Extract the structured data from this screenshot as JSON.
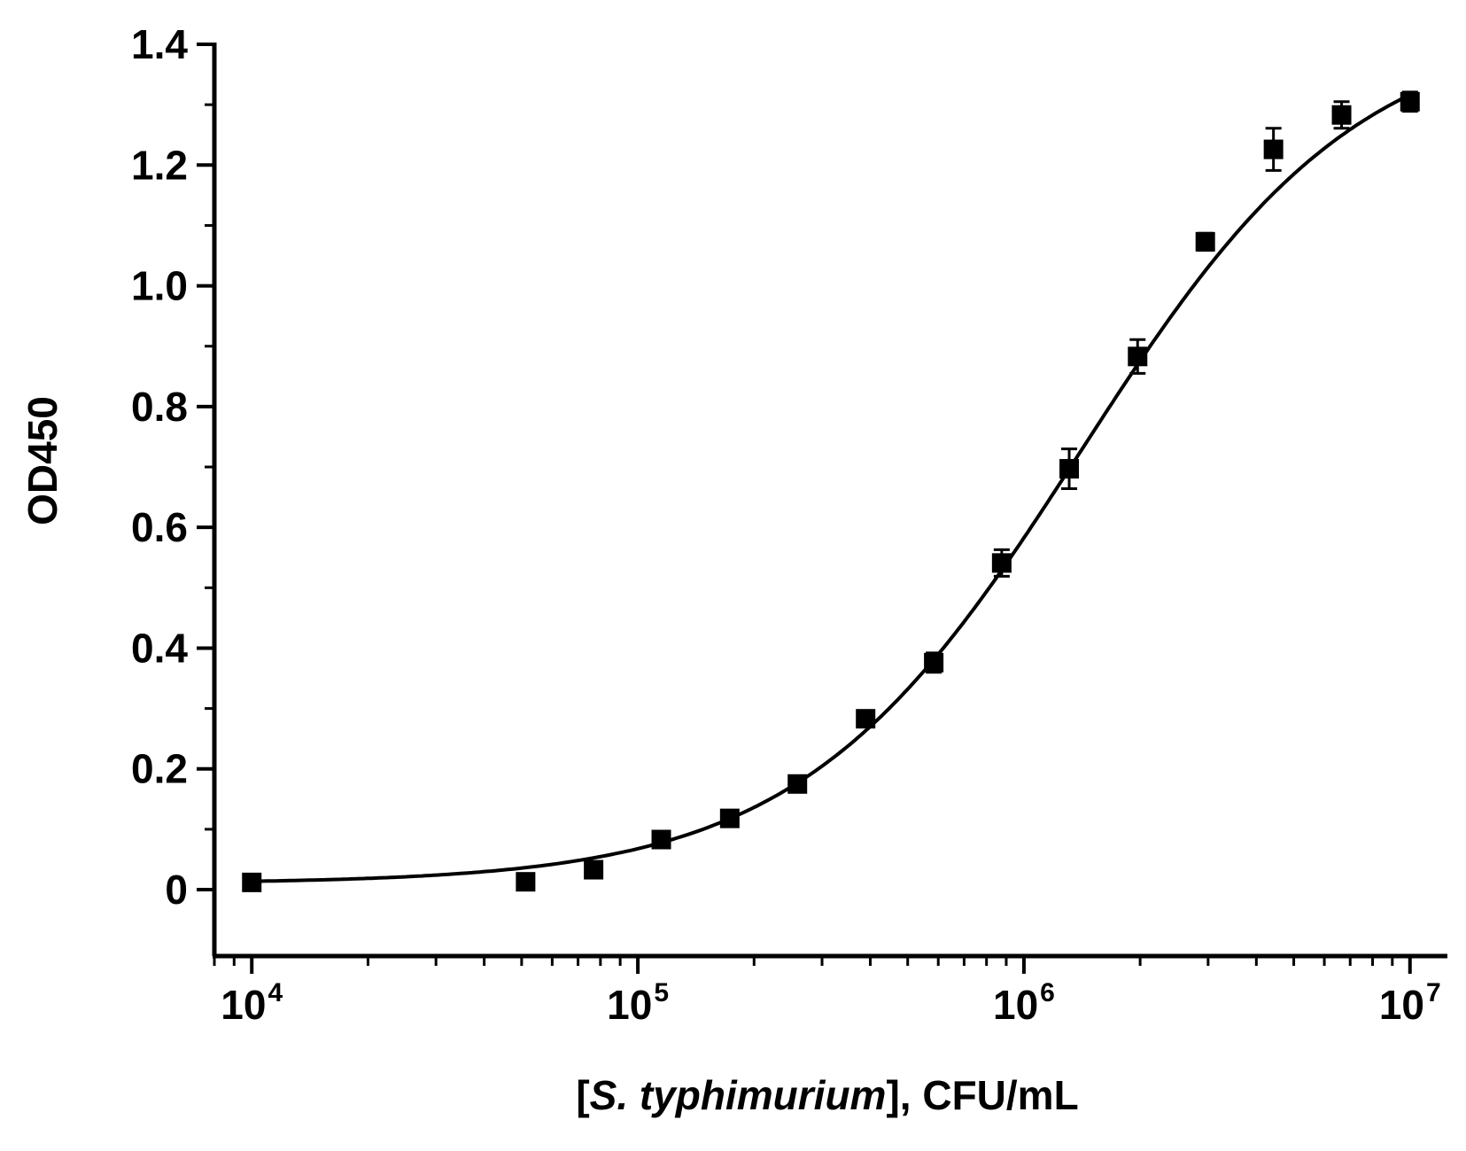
{
  "chart_data": {
    "type": "scatter",
    "title": "",
    "ylabel": "OD450",
    "xlabel": {
      "bracket_open": "[",
      "italic": "S. typhimurium",
      "rest": "], CFU/mL"
    },
    "x_scale": "log",
    "xlim": [
      8000,
      12500000
    ],
    "ylim": [
      -0.11,
      1.4
    ],
    "x_ticks": [
      {
        "value": 10000,
        "base": "10",
        "exp": "4"
      },
      {
        "value": 100000,
        "base": "10",
        "exp": "5"
      },
      {
        "value": 1000000,
        "base": "10",
        "exp": "6"
      },
      {
        "value": 10000000,
        "base": "10",
        "exp": "7"
      }
    ],
    "y_ticks": [
      {
        "value": 0,
        "label": "0"
      },
      {
        "value": 0.2,
        "label": "0.2"
      },
      {
        "value": 0.4,
        "label": "0.4"
      },
      {
        "value": 0.6,
        "label": "0.6"
      },
      {
        "value": 0.8,
        "label": "0.8"
      },
      {
        "value": 1.0,
        "label": "1.0"
      },
      {
        "value": 1.2,
        "label": "1.2"
      },
      {
        "value": 1.4,
        "label": "1.4"
      }
    ],
    "series": [
      {
        "marker": "square",
        "color": "#000000",
        "x": [
          10000,
          51200,
          76800,
          115000,
          173000,
          259000,
          389000,
          584000,
          876000,
          1310000,
          1970000,
          2950000,
          4430000,
          6650000,
          10000000
        ],
        "y": [
          0.012,
          0.013,
          0.033,
          0.083,
          0.118,
          0.175,
          0.283,
          0.376,
          0.541,
          0.697,
          0.883,
          1.073,
          1.226,
          1.283,
          1.305
        ],
        "error": [
          0.004,
          0.012,
          0.008,
          0.006,
          0.006,
          0.006,
          0.012,
          0.016,
          0.022,
          0.033,
          0.028,
          0.014,
          0.035,
          0.022,
          0.016
        ]
      }
    ],
    "fit": {
      "model": "4PL",
      "bottom": 0.01,
      "top": 1.44,
      "ec50": 1400000,
      "hill": 1.2,
      "color": "#000000"
    },
    "grid": false,
    "legend": "none"
  }
}
